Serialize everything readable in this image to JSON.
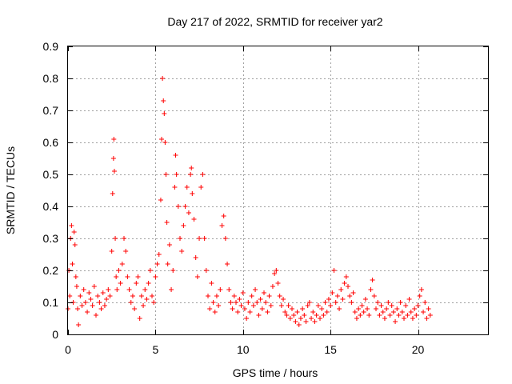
{
  "chart_data": {
    "type": "scatter",
    "title": "Day 217 of 2022, SRMTID for receiver yar2",
    "xlabel": "GPS time / hours",
    "ylabel": "SRMTID / TECUs",
    "xlim": [
      0,
      24
    ],
    "ylim": [
      0,
      0.9
    ],
    "xticks": [
      0,
      5,
      10,
      15,
      20
    ],
    "xtick_labels": [
      "0",
      "5",
      "10",
      "15",
      "20"
    ],
    "yticks": [
      0,
      0.1,
      0.2,
      0.3,
      0.4,
      0.5,
      0.6,
      0.7,
      0.8,
      0.9
    ],
    "ytick_labels": [
      "0",
      "0.1",
      "0.2",
      "0.3",
      "0.4",
      "0.5",
      "0.6",
      "0.7",
      "0.8",
      "0.9"
    ],
    "grid": true,
    "marker": "+",
    "color": "#ff0000",
    "series": [
      {
        "name": "SRMTID",
        "points": [
          [
            0.0,
            0.08
          ],
          [
            0.05,
            0.2
          ],
          [
            0.1,
            0.12
          ],
          [
            0.15,
            0.3
          ],
          [
            0.2,
            0.34
          ],
          [
            0.25,
            0.22
          ],
          [
            0.3,
            0.1
          ],
          [
            0.35,
            0.32
          ],
          [
            0.4,
            0.28
          ],
          [
            0.45,
            0.18
          ],
          [
            0.5,
            0.15
          ],
          [
            0.55,
            0.08
          ],
          [
            0.6,
            0.03
          ],
          [
            0.7,
            0.12
          ],
          [
            0.8,
            0.09
          ],
          [
            0.9,
            0.14
          ],
          [
            1.0,
            0.1
          ],
          [
            1.1,
            0.07
          ],
          [
            1.2,
            0.13
          ],
          [
            1.3,
            0.11
          ],
          [
            1.4,
            0.09
          ],
          [
            1.5,
            0.15
          ],
          [
            1.6,
            0.06
          ],
          [
            1.7,
            0.12
          ],
          [
            1.8,
            0.1
          ],
          [
            1.9,
            0.08
          ],
          [
            2.0,
            0.13
          ],
          [
            2.1,
            0.09
          ],
          [
            2.2,
            0.11
          ],
          [
            2.3,
            0.14
          ],
          [
            2.4,
            0.12
          ],
          [
            2.5,
            0.26
          ],
          [
            2.55,
            0.44
          ],
          [
            2.6,
            0.55
          ],
          [
            2.62,
            0.61
          ],
          [
            2.65,
            0.51
          ],
          [
            2.7,
            0.3
          ],
          [
            2.75,
            0.18
          ],
          [
            2.8,
            0.14
          ],
          [
            2.9,
            0.2
          ],
          [
            3.0,
            0.16
          ],
          [
            3.1,
            0.22
          ],
          [
            3.2,
            0.3
          ],
          [
            3.3,
            0.26
          ],
          [
            3.4,
            0.18
          ],
          [
            3.5,
            0.14
          ],
          [
            3.6,
            0.1
          ],
          [
            3.7,
            0.12
          ],
          [
            3.8,
            0.08
          ],
          [
            3.9,
            0.16
          ],
          [
            4.0,
            0.18
          ],
          [
            4.1,
            0.05
          ],
          [
            4.2,
            0.12
          ],
          [
            4.3,
            0.09
          ],
          [
            4.4,
            0.14
          ],
          [
            4.5,
            0.11
          ],
          [
            4.6,
            0.16
          ],
          [
            4.7,
            0.2
          ],
          [
            4.8,
            0.12
          ],
          [
            4.9,
            0.1
          ],
          [
            5.0,
            0.18
          ],
          [
            5.1,
            0.22
          ],
          [
            5.2,
            0.25
          ],
          [
            5.3,
            0.42
          ],
          [
            5.35,
            0.61
          ],
          [
            5.4,
            0.8
          ],
          [
            5.45,
            0.73
          ],
          [
            5.5,
            0.69
          ],
          [
            5.55,
            0.6
          ],
          [
            5.6,
            0.5
          ],
          [
            5.65,
            0.35
          ],
          [
            5.7,
            0.22
          ],
          [
            5.8,
            0.28
          ],
          [
            5.9,
            0.14
          ],
          [
            6.0,
            0.2
          ],
          [
            6.1,
            0.46
          ],
          [
            6.15,
            0.56
          ],
          [
            6.2,
            0.5
          ],
          [
            6.3,
            0.4
          ],
          [
            6.4,
            0.3
          ],
          [
            6.5,
            0.26
          ],
          [
            6.6,
            0.34
          ],
          [
            6.7,
            0.4
          ],
          [
            6.8,
            0.46
          ],
          [
            6.9,
            0.38
          ],
          [
            7.0,
            0.5
          ],
          [
            7.05,
            0.52
          ],
          [
            7.1,
            0.44
          ],
          [
            7.2,
            0.36
          ],
          [
            7.3,
            0.24
          ],
          [
            7.4,
            0.18
          ],
          [
            7.5,
            0.3
          ],
          [
            7.6,
            0.46
          ],
          [
            7.7,
            0.5
          ],
          [
            7.8,
            0.3
          ],
          [
            7.9,
            0.2
          ],
          [
            8.0,
            0.12
          ],
          [
            8.1,
            0.08
          ],
          [
            8.2,
            0.16
          ],
          [
            8.3,
            0.1
          ],
          [
            8.4,
            0.07
          ],
          [
            8.5,
            0.12
          ],
          [
            8.6,
            0.09
          ],
          [
            8.7,
            0.14
          ],
          [
            8.8,
            0.34
          ],
          [
            8.9,
            0.37
          ],
          [
            9.0,
            0.3
          ],
          [
            9.1,
            0.22
          ],
          [
            9.2,
            0.14
          ],
          [
            9.3,
            0.1
          ],
          [
            9.4,
            0.08
          ],
          [
            9.5,
            0.12
          ],
          [
            9.6,
            0.1
          ],
          [
            9.7,
            0.07
          ],
          [
            9.8,
            0.11
          ],
          [
            9.9,
            0.09
          ],
          [
            10.0,
            0.13
          ],
          [
            10.1,
            0.08
          ],
          [
            10.2,
            0.05
          ],
          [
            10.3,
            0.1
          ],
          [
            10.4,
            0.07
          ],
          [
            10.5,
            0.12
          ],
          [
            10.6,
            0.09
          ],
          [
            10.7,
            0.14
          ],
          [
            10.8,
            0.1
          ],
          [
            10.9,
            0.06
          ],
          [
            11.0,
            0.11
          ],
          [
            11.1,
            0.08
          ],
          [
            11.2,
            0.13
          ],
          [
            11.3,
            0.1
          ],
          [
            11.4,
            0.07
          ],
          [
            11.5,
            0.12
          ],
          [
            11.6,
            0.09
          ],
          [
            11.7,
            0.15
          ],
          [
            11.8,
            0.19
          ],
          [
            11.9,
            0.2
          ],
          [
            12.0,
            0.16
          ],
          [
            12.1,
            0.12
          ],
          [
            12.2,
            0.09
          ],
          [
            12.3,
            0.11
          ],
          [
            12.4,
            0.07
          ],
          [
            12.5,
            0.06
          ],
          [
            12.6,
            0.09
          ],
          [
            12.7,
            0.05
          ],
          [
            12.8,
            0.08
          ],
          [
            12.9,
            0.06
          ],
          [
            13.0,
            0.04
          ],
          [
            13.1,
            0.07
          ],
          [
            13.2,
            0.03
          ],
          [
            13.3,
            0.05
          ],
          [
            13.4,
            0.08
          ],
          [
            13.5,
            0.06
          ],
          [
            13.6,
            0.04
          ],
          [
            13.7,
            0.09
          ],
          [
            13.8,
            0.1
          ],
          [
            13.9,
            0.05
          ],
          [
            14.0,
            0.07
          ],
          [
            14.1,
            0.04
          ],
          [
            14.2,
            0.06
          ],
          [
            14.3,
            0.09
          ],
          [
            14.4,
            0.05
          ],
          [
            14.5,
            0.08
          ],
          [
            14.6,
            0.06
          ],
          [
            14.7,
            0.1
          ],
          [
            14.8,
            0.07
          ],
          [
            14.9,
            0.11
          ],
          [
            15.0,
            0.09
          ],
          [
            15.1,
            0.13
          ],
          [
            15.2,
            0.2
          ],
          [
            15.3,
            0.1
          ],
          [
            15.4,
            0.12
          ],
          [
            15.5,
            0.08
          ],
          [
            15.6,
            0.14
          ],
          [
            15.7,
            0.11
          ],
          [
            15.8,
            0.16
          ],
          [
            15.9,
            0.18
          ],
          [
            16.0,
            0.15
          ],
          [
            16.1,
            0.12
          ],
          [
            16.2,
            0.1
          ],
          [
            16.3,
            0.13
          ],
          [
            16.4,
            0.07
          ],
          [
            16.5,
            0.05
          ],
          [
            16.6,
            0.08
          ],
          [
            16.7,
            0.06
          ],
          [
            16.8,
            0.09
          ],
          [
            16.9,
            0.07
          ],
          [
            17.0,
            0.11
          ],
          [
            17.1,
            0.08
          ],
          [
            17.2,
            0.06
          ],
          [
            17.3,
            0.14
          ],
          [
            17.4,
            0.17
          ],
          [
            17.5,
            0.12
          ],
          [
            17.6,
            0.08
          ],
          [
            17.7,
            0.1
          ],
          [
            17.8,
            0.06
          ],
          [
            17.9,
            0.09
          ],
          [
            18.0,
            0.07
          ],
          [
            18.1,
            0.05
          ],
          [
            18.2,
            0.08
          ],
          [
            18.3,
            0.1
          ],
          [
            18.4,
            0.06
          ],
          [
            18.5,
            0.09
          ],
          [
            18.6,
            0.07
          ],
          [
            18.7,
            0.04
          ],
          [
            18.8,
            0.08
          ],
          [
            18.9,
            0.06
          ],
          [
            19.0,
            0.1
          ],
          [
            19.1,
            0.07
          ],
          [
            19.2,
            0.05
          ],
          [
            19.3,
            0.09
          ],
          [
            19.4,
            0.06
          ],
          [
            19.5,
            0.11
          ],
          [
            19.6,
            0.07
          ],
          [
            19.7,
            0.05
          ],
          [
            19.8,
            0.08
          ],
          [
            19.9,
            0.06
          ],
          [
            20.0,
            0.09
          ],
          [
            20.1,
            0.12
          ],
          [
            20.2,
            0.14
          ],
          [
            20.3,
            0.07
          ],
          [
            20.4,
            0.1
          ],
          [
            20.5,
            0.05
          ],
          [
            20.6,
            0.08
          ],
          [
            20.7,
            0.06
          ]
        ]
      }
    ]
  }
}
